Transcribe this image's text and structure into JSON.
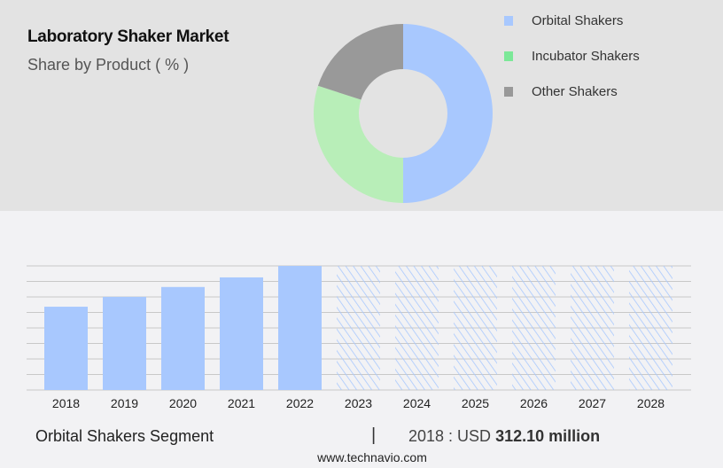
{
  "chart_data": [
    {
      "type": "pie",
      "variant": "donut",
      "title": "Laboratory Shaker Market",
      "subtitle": "Share by Product ( % )",
      "labels": [
        "Orbital Shakers",
        "Incubator Shakers",
        "Other Shakers"
      ],
      "values": [
        50,
        30,
        20
      ],
      "colors": [
        "#a8c8fe",
        "#b8eeb8",
        "#999999"
      ],
      "legend_colors": [
        "#a8c8fe",
        "#7ce898",
        "#999999"
      ],
      "legend": "top-right"
    },
    {
      "type": "bar",
      "categories": [
        "2018",
        "2019",
        "2020",
        "2021",
        "2022",
        "2023",
        "2024",
        "2025",
        "2026",
        "2027",
        "2028"
      ],
      "values": [
        312.1,
        349,
        386,
        422,
        465,
        null,
        null,
        null,
        null,
        null,
        null
      ],
      "forecast": [
        "2023",
        "2024",
        "2025",
        "2026",
        "2027",
        "2028"
      ],
      "ylim": [
        0,
        465
      ],
      "grid": true,
      "color": "#a8c8fe",
      "xlabel": "",
      "ylabel": ""
    }
  ],
  "footer": {
    "segment": "Orbital Shakers Segment",
    "separator": "|",
    "year_label": "2018 : USD",
    "value": "312.10 million",
    "url": "www.technavio.com"
  }
}
